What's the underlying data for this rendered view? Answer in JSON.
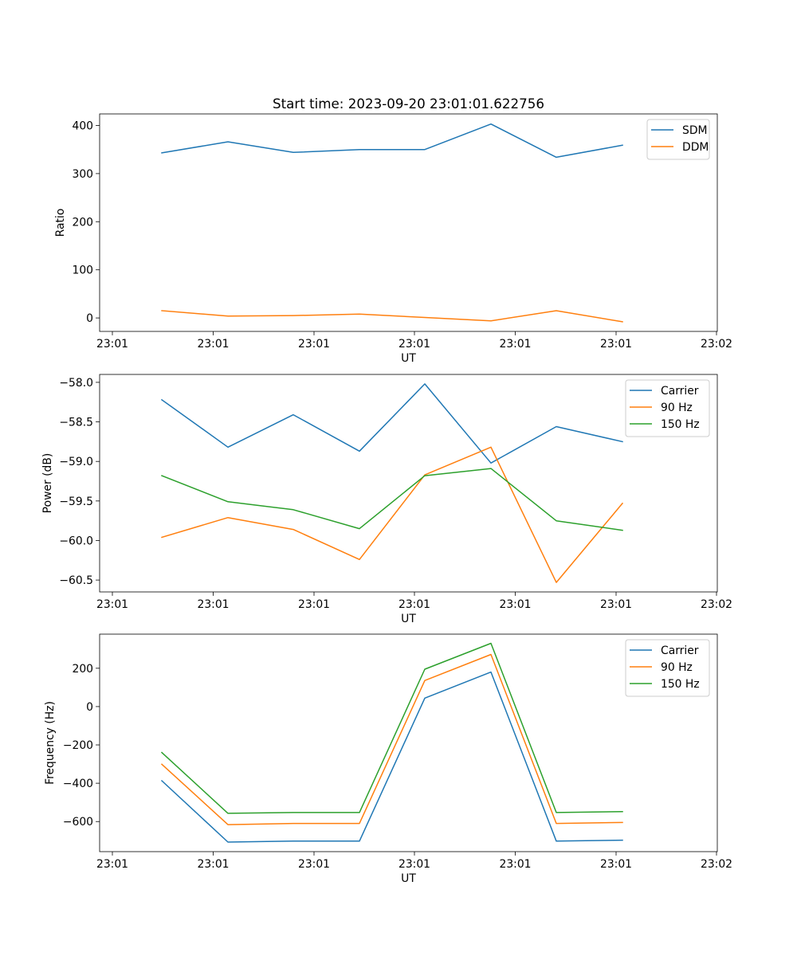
{
  "figure_title": "Start time: 2023-09-20 23:01:01.622756",
  "chart_data": [
    {
      "type": "line",
      "title": "Start time: 2023-09-20 23:01:01.622756",
      "xlabel": "UT",
      "ylabel": "Ratio",
      "x_tick_labels": [
        "23:01",
        "23:01",
        "23:01",
        "23:01",
        "23:01",
        "23:01",
        "23:02"
      ],
      "y_ticks": [
        0,
        100,
        200,
        300,
        400
      ],
      "y_tick_labels": [
        "0",
        "100",
        "200",
        "300",
        "400"
      ],
      "ylim": [
        -28,
        424
      ],
      "legend_position": "top-right",
      "series": [
        {
          "name": "SDM",
          "color": "#1f77b4",
          "values": [
            343,
            366,
            344,
            350,
            350,
            403,
            334,
            359
          ]
        },
        {
          "name": "DDM",
          "color": "#ff7f0e",
          "values": [
            15,
            4,
            5,
            8,
            1,
            -6,
            15,
            -8
          ]
        }
      ]
    },
    {
      "type": "line",
      "xlabel": "UT",
      "ylabel": "Power (dB)",
      "x_tick_labels": [
        "23:01",
        "23:01",
        "23:01",
        "23:01",
        "23:01",
        "23:01",
        "23:02"
      ],
      "y_ticks": [
        -60.5,
        -60.0,
        -59.5,
        -59.0,
        -58.5,
        -58.0
      ],
      "y_tick_labels": [
        "−60.5",
        "−60.0",
        "−59.5",
        "−59.0",
        "−58.5",
        "−58.0"
      ],
      "ylim": [
        -60.65,
        -57.9
      ],
      "legend_position": "top-right",
      "series": [
        {
          "name": "Carrier",
          "color": "#1f77b4",
          "values": [
            -58.22,
            -58.82,
            -58.41,
            -58.87,
            -58.02,
            -59.02,
            -58.56,
            -58.75
          ]
        },
        {
          "name": "90 Hz",
          "color": "#ff7f0e",
          "values": [
            -59.96,
            -59.71,
            -59.86,
            -60.24,
            -59.17,
            -58.82,
            -60.53,
            -59.53
          ]
        },
        {
          "name": "150 Hz",
          "color": "#2ca02c",
          "values": [
            -59.18,
            -59.51,
            -59.61,
            -59.85,
            -59.18,
            -59.09,
            -59.75,
            -59.87
          ]
        }
      ]
    },
    {
      "type": "line",
      "xlabel": "UT",
      "ylabel": "Frequency (Hz)",
      "x_tick_labels": [
        "23:01",
        "23:01",
        "23:01",
        "23:01",
        "23:01",
        "23:01",
        "23:02"
      ],
      "y_ticks": [
        -600,
        -400,
        -200,
        0,
        200
      ],
      "y_tick_labels": [
        "−600",
        "−400",
        "−200",
        "0",
        "200"
      ],
      "ylim": [
        -757,
        378
      ],
      "legend_position": "top-right",
      "series": [
        {
          "name": "Carrier",
          "color": "#1f77b4",
          "values": [
            -387,
            -707,
            -702,
            -702,
            44,
            180,
            -702,
            -697
          ]
        },
        {
          "name": "90 Hz",
          "color": "#ff7f0e",
          "values": [
            -301,
            -616,
            -610,
            -610,
            136,
            272,
            -610,
            -605
          ]
        },
        {
          "name": "150 Hz",
          "color": "#2ca02c",
          "values": [
            -240,
            -557,
            -553,
            -553,
            195,
            330,
            -553,
            -548
          ]
        }
      ]
    }
  ]
}
